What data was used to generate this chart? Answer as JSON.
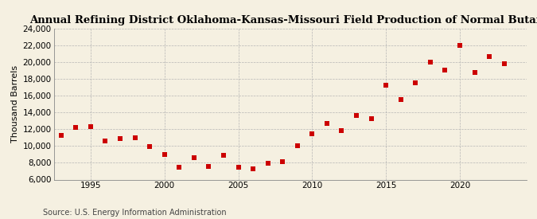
{
  "title": "Annual Refining District Oklahoma-Kansas-Missouri Field Production of Normal Butane",
  "ylabel": "Thousand Barrels",
  "source": "Source: U.S. Energy Information Administration",
  "background_color": "#f5f0e1",
  "plot_bg_color": "#f5f0e1",
  "marker_color": "#cc0000",
  "grid_color": "#b0b0b0",
  "years": [
    1993,
    1994,
    1995,
    1996,
    1997,
    1998,
    1999,
    2000,
    2001,
    2002,
    2003,
    2004,
    2005,
    2006,
    2007,
    2008,
    2009,
    2010,
    2011,
    2012,
    2013,
    2014,
    2015,
    2016,
    2017,
    2018,
    2019,
    2020,
    2021,
    2022,
    2023
  ],
  "values": [
    11300,
    12200,
    12300,
    10600,
    10900,
    11000,
    9900,
    9000,
    7500,
    8600,
    7600,
    8900,
    7500,
    7300,
    7900,
    8100,
    10000,
    11500,
    12700,
    11800,
    13600,
    13300,
    17200,
    15500,
    17500,
    20000,
    19000,
    22000,
    18800,
    20700,
    19800
  ],
  "ylim": [
    6000,
    24000
  ],
  "yticks": [
    6000,
    8000,
    10000,
    12000,
    14000,
    16000,
    18000,
    20000,
    22000,
    24000
  ],
  "xlim": [
    1992.5,
    2024.5
  ],
  "xticks": [
    1995,
    2000,
    2005,
    2010,
    2015,
    2020
  ],
  "title_fontsize": 9.5,
  "ylabel_fontsize": 8,
  "tick_fontsize": 7.5,
  "source_fontsize": 7
}
